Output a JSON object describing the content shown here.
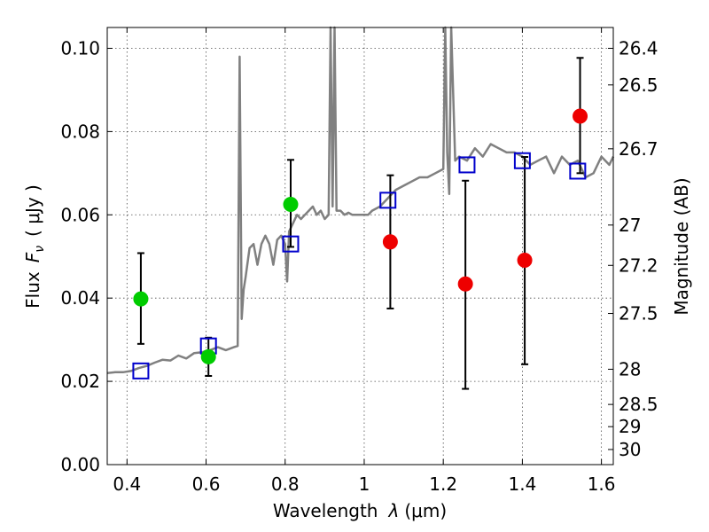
{
  "chart_data": {
    "type": "scatter",
    "xlabel": "Wavelength",
    "xlabel_symbol": "λ",
    "xlabel_unit": "(μm)",
    "ylabel": "Flux",
    "ylabel_symbol": "F",
    "ylabel_symbol_sub": "ν",
    "ylabel_unit": "( μJy )",
    "y2label": "Magnitude (AB)",
    "xlim": [
      0.35,
      1.63
    ],
    "ylim": [
      0.0,
      0.105
    ],
    "grid": true,
    "x_ticks": [
      0.4,
      0.6,
      0.8,
      1.0,
      1.2,
      1.4,
      1.6
    ],
    "x_tick_labels": [
      "0.4",
      "0.6",
      "0.8",
      "1",
      "1.2",
      "1.4",
      "1.6"
    ],
    "y_ticks": [
      0.0,
      0.02,
      0.04,
      0.06,
      0.08,
      0.1
    ],
    "y_tick_labels": [
      "0.00",
      "0.02",
      "0.04",
      "0.06",
      "0.08",
      "0.10"
    ],
    "y2_ticks": [
      {
        "label": "26.4",
        "mag": 26.4
      },
      {
        "label": "26.5",
        "mag": 26.5
      },
      {
        "label": "26.7",
        "mag": 26.7
      },
      {
        "label": "27",
        "mag": 27.0
      },
      {
        "label": "27.2",
        "mag": 27.2
      },
      {
        "label": "27.5",
        "mag": 27.5
      },
      {
        "label": "28",
        "mag": 28.0
      },
      {
        "label": "28.5",
        "mag": 28.5
      },
      {
        "label": "29",
        "mag": 29.0
      },
      {
        "label": "30",
        "mag": 30.0
      }
    ],
    "series": [
      {
        "kind": "spectrum",
        "color": "#808080",
        "x": [
          0.35,
          0.37,
          0.39,
          0.41,
          0.43,
          0.45,
          0.47,
          0.49,
          0.51,
          0.53,
          0.55,
          0.57,
          0.59,
          0.61,
          0.63,
          0.65,
          0.67,
          0.68,
          0.685,
          0.69,
          0.695,
          0.7,
          0.71,
          0.72,
          0.73,
          0.74,
          0.75,
          0.76,
          0.77,
          0.78,
          0.79,
          0.8,
          0.805,
          0.81,
          0.82,
          0.83,
          0.84,
          0.85,
          0.86,
          0.87,
          0.88,
          0.89,
          0.9,
          0.91,
          0.915,
          0.92,
          0.925,
          0.93,
          0.94,
          0.95,
          0.96,
          0.97,
          0.98,
          0.99,
          1.0,
          1.01,
          1.02,
          1.04,
          1.06,
          1.08,
          1.1,
          1.12,
          1.14,
          1.16,
          1.18,
          1.2,
          1.205,
          1.21,
          1.215,
          1.22,
          1.23,
          1.24,
          1.26,
          1.28,
          1.3,
          1.32,
          1.34,
          1.36,
          1.38,
          1.4,
          1.42,
          1.44,
          1.46,
          1.48,
          1.5,
          1.52,
          1.54,
          1.56,
          1.58,
          1.6,
          1.62,
          1.63
        ],
        "y": [
          0.022,
          0.0222,
          0.0222,
          0.0225,
          0.0232,
          0.0237,
          0.0245,
          0.0252,
          0.025,
          0.0262,
          0.0255,
          0.0268,
          0.027,
          0.0275,
          0.0282,
          0.0275,
          0.0282,
          0.0285,
          0.098,
          0.035,
          0.042,
          0.045,
          0.052,
          0.053,
          0.048,
          0.053,
          0.055,
          0.053,
          0.048,
          0.054,
          0.055,
          0.053,
          0.044,
          0.056,
          0.058,
          0.06,
          0.059,
          0.06,
          0.061,
          0.062,
          0.06,
          0.061,
          0.059,
          0.06,
          0.105,
          0.062,
          0.105,
          0.061,
          0.061,
          0.06,
          0.0605,
          0.06,
          0.06,
          0.06,
          0.06,
          0.06,
          0.061,
          0.062,
          0.064,
          0.066,
          0.067,
          0.068,
          0.069,
          0.069,
          0.07,
          0.071,
          0.105,
          0.075,
          0.065,
          0.105,
          0.073,
          0.074,
          0.073,
          0.076,
          0.074,
          0.077,
          0.076,
          0.075,
          0.075,
          0.074,
          0.072,
          0.073,
          0.074,
          0.07,
          0.074,
          0.072,
          0.073,
          0.069,
          0.07,
          0.074,
          0.072,
          0.074
        ]
      },
      {
        "kind": "model_photometry",
        "marker": "open-square",
        "color": "#0000cc",
        "x": [
          0.435,
          0.606,
          0.814,
          1.06,
          1.26,
          1.4,
          1.54
        ],
        "y": [
          0.0225,
          0.0285,
          0.053,
          0.0635,
          0.072,
          0.073,
          0.0705
        ]
      },
      {
        "kind": "observed_detections",
        "marker": "filled-circle",
        "color": "#00cc00",
        "x": [
          0.435,
          0.606,
          0.814
        ],
        "y": [
          0.0398,
          0.0259,
          0.0625
        ],
        "yerr_low": [
          0.029,
          0.0213,
          0.0523
        ],
        "yerr_high": [
          0.0508,
          0.0305,
          0.0732
        ]
      },
      {
        "kind": "observed_upper",
        "marker": "filled-circle",
        "color": "#ee0000",
        "x": [
          1.066,
          1.256,
          1.406,
          1.546
        ],
        "y": [
          0.0535,
          0.0434,
          0.0491,
          0.0837
        ],
        "yerr_low": [
          0.0375,
          0.0182,
          0.0241,
          0.07
        ],
        "yerr_high": [
          0.0695,
          0.0682,
          0.0739,
          0.0977
        ]
      }
    ]
  }
}
